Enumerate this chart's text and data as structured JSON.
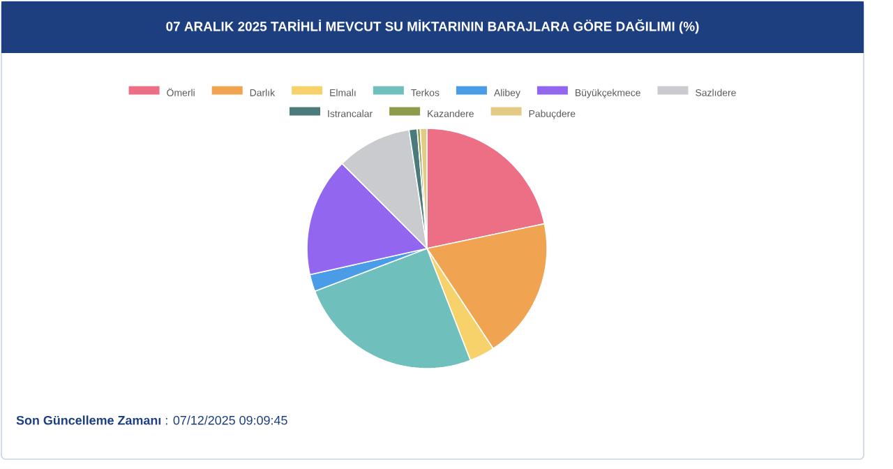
{
  "chart_data": {
    "type": "pie",
    "title": "07 ARALIK 2025 TARİHLİ MEVCUT SU MİKTARININ BARAJLARA GÖRE DAĞILIMI (%)",
    "categories": [
      "Ömerli",
      "Darlık",
      "Elmalı",
      "Terkos",
      "Alibey",
      "Büyükçekmece",
      "Sazlıdere",
      "Istrancalar",
      "Kazandere",
      "Pabuçdere"
    ],
    "values": [
      21.7,
      19.0,
      3.4,
      25.1,
      2.3,
      16.0,
      10.1,
      1.1,
      0.4,
      0.9
    ],
    "colors": [
      "#ec6f86",
      "#f0a452",
      "#f7d16a",
      "#6fc0bd",
      "#4a9ce6",
      "#9266ef",
      "#c9cbcf",
      "#4b7a7c",
      "#8f9a4b",
      "#e3cb86"
    ],
    "legend": "top",
    "annotations": [
      "**Son Güncelleme Zamanı** : 07/12/2025 09:09:45"
    ]
  }
}
